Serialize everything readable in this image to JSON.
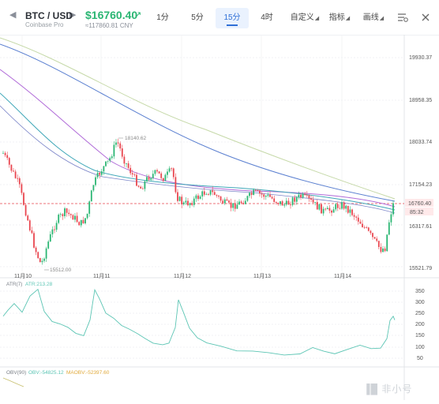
{
  "header": {
    "pair": "BTC / USD",
    "exchange": "Coinbase Pro",
    "price": "$16760.40",
    "cny": "≈117860.81 CNY",
    "intervals": [
      "1分",
      "5分",
      "15分",
      "4时"
    ],
    "active_interval": "15分",
    "menus": [
      "自定义",
      "指标",
      "画线"
    ]
  },
  "colors": {
    "up": "#2bb673",
    "down": "#e9464f",
    "accent": "#2f6fd6",
    "ma1": "#c6d9a9",
    "ma2": "#5a7fd0",
    "ma3": "#b06ad8",
    "ma4": "#3fa7b8",
    "atr": "#5cc5b4",
    "obv": "#c8c070"
  },
  "icons": [
    "chevron-left-icon",
    "chevron-right-icon",
    "price-up-arrow-icon",
    "settings-list-icon",
    "close-icon"
  ],
  "chart": {
    "price_axis": [
      "19930.37",
      "18958.35",
      "18033.74",
      "17154.23",
      "16760.40",
      "85:32",
      "16317.61",
      "15521.79"
    ],
    "date_axis": [
      "11月10",
      "11月11",
      "11月12",
      "11月13",
      "11月14"
    ],
    "annotation_high": "18140.62",
    "annotation_low": "15512.00"
  },
  "atr": {
    "label": "ATR(7)",
    "value_label": "ATR:213.28",
    "axis": [
      "350",
      "300",
      "250",
      "200",
      "150",
      "100",
      "50"
    ]
  },
  "obv": {
    "label": "OBV(90)",
    "obv_value": "OBV:-54825.12",
    "maobv_value": "MAOBV:-52397.60"
  },
  "watermark": "▐█ 非小号"
}
